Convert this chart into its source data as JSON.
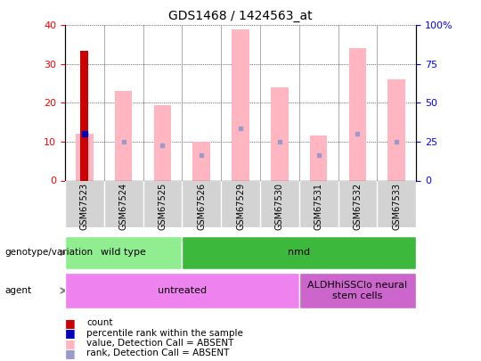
{
  "title": "GDS1468 / 1424563_at",
  "samples": [
    "GSM67523",
    "GSM67524",
    "GSM67525",
    "GSM67526",
    "GSM67529",
    "GSM67530",
    "GSM67531",
    "GSM67532",
    "GSM67533"
  ],
  "count_values": [
    33.5,
    null,
    null,
    null,
    null,
    null,
    null,
    null,
    null
  ],
  "percentile_rank": [
    12,
    null,
    null,
    null,
    null,
    null,
    null,
    null,
    null
  ],
  "pink_bar_values": [
    12,
    23,
    19.5,
    10,
    39,
    24,
    11.5,
    34,
    26
  ],
  "blue_dot_values": [
    12,
    10,
    9,
    6.5,
    13.5,
    10,
    6.5,
    12,
    10
  ],
  "ylim_left": [
    0,
    40
  ],
  "ylim_right": [
    0,
    100
  ],
  "yticks_left": [
    0,
    10,
    20,
    30,
    40
  ],
  "yticks_right": [
    0,
    25,
    50,
    75,
    100
  ],
  "ytick_labels_right": [
    "0",
    "25",
    "50",
    "75",
    "100%"
  ],
  "genotype_groups": [
    {
      "label": "wild type",
      "start": 0,
      "end": 3,
      "color": "#90EE90"
    },
    {
      "label": "nmd",
      "start": 3,
      "end": 9,
      "color": "#3CB83C"
    }
  ],
  "agent_groups": [
    {
      "label": "untreated",
      "start": 0,
      "end": 6,
      "color": "#EE82EE"
    },
    {
      "label": "ALDHhiSSClo neural\nstem cells",
      "start": 6,
      "end": 9,
      "color": "#CC66CC"
    }
  ],
  "pink_bar_color": "#FFB6C1",
  "red_bar_color": "#CC0000",
  "blue_dot_color": "#9999CC",
  "blue_sq_color": "#0000BB",
  "legend_items": [
    {
      "label": "count",
      "color": "#CC0000"
    },
    {
      "label": "percentile rank within the sample",
      "color": "#0000BB"
    },
    {
      "label": "value, Detection Call = ABSENT",
      "color": "#FFB6C1"
    },
    {
      "label": "rank, Detection Call = ABSENT",
      "color": "#9999CC"
    }
  ]
}
